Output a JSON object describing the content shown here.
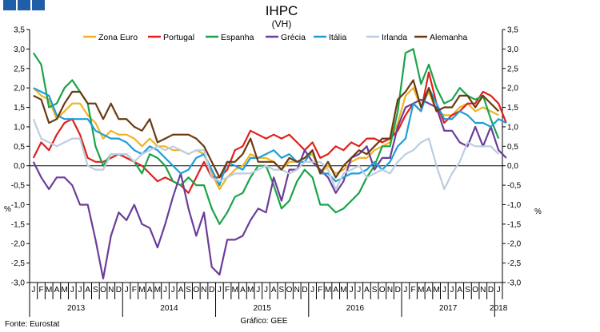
{
  "header": {
    "corner_colors": [
      "#1f5fa8",
      "#1f5fa8",
      "#1f5fa8"
    ]
  },
  "footer": {
    "source": "Fonte: Eurostat",
    "graphic": "Gráfico: GEE"
  },
  "chart_data": {
    "type": "line",
    "title": "IHPC",
    "subtitle": "(VH)",
    "ylabel_left": "%",
    "ylabel_right": "%",
    "ylim": [
      -3.0,
      3.5
    ],
    "yticks": [
      "3,5",
      "3,0",
      "2,5",
      "2,0",
      "1,5",
      "1,0",
      "0,5",
      "0,0",
      "-0,5",
      "-1,0",
      "-1,5",
      "-2,0",
      "-2,5",
      "-3,0"
    ],
    "month_labels": [
      "J",
      "F",
      "M",
      "A",
      "M",
      "J",
      "J",
      "A",
      "S",
      "O",
      "N",
      "D"
    ],
    "year_labels": [
      "2013",
      "2014",
      "2015",
      "2016",
      "2017",
      "2018"
    ],
    "x_start": "2013-01",
    "grid": false,
    "legend_position": "top",
    "series": [
      {
        "name": "Zona Euro",
        "color": "#f0b323",
        "values": [
          2.0,
          1.8,
          1.7,
          1.2,
          1.4,
          1.6,
          1.6,
          1.3,
          1.1,
          0.7,
          0.9,
          0.8,
          0.8,
          0.7,
          0.5,
          0.7,
          0.5,
          0.5,
          0.4,
          0.4,
          0.3,
          0.4,
          0.3,
          -0.2,
          -0.6,
          -0.3,
          -0.1,
          0.0,
          0.3,
          0.2,
          0.2,
          0.1,
          -0.1,
          0.1,
          0.1,
          0.2,
          0.3,
          -0.2,
          0.0,
          -0.2,
          -0.1,
          0.1,
          0.2,
          0.2,
          0.4,
          0.5,
          0.6,
          1.1,
          1.8,
          2.0,
          1.5,
          1.9,
          1.4,
          1.3,
          1.3,
          1.5,
          1.6,
          1.4,
          1.5,
          1.4,
          1.3
        ]
      },
      {
        "name": "Portugal",
        "color": "#e0201b",
        "values": [
          0.2,
          0.6,
          0.4,
          0.8,
          1.1,
          1.2,
          0.8,
          0.2,
          0.1,
          0.1,
          0.2,
          0.3,
          0.2,
          0.1,
          0.0,
          -0.2,
          -0.4,
          -0.3,
          -0.4,
          -0.5,
          -0.7,
          -0.3,
          0.1,
          -0.3,
          -0.3,
          -0.1,
          0.4,
          0.5,
          0.9,
          0.8,
          0.7,
          0.8,
          0.7,
          0.8,
          0.6,
          0.4,
          0.6,
          0.2,
          0.3,
          0.5,
          0.4,
          0.6,
          0.5,
          0.7,
          0.7,
          0.6,
          0.7,
          0.9,
          1.3,
          1.6,
          1.4,
          2.4,
          1.6,
          1.1,
          1.3,
          1.4,
          1.6,
          1.6,
          1.9,
          1.8,
          1.6,
          1.1
        ]
      },
      {
        "name": "Espanha",
        "color": "#1aa34a",
        "values": [
          2.9,
          2.6,
          1.5,
          1.6,
          2.0,
          2.2,
          1.9,
          1.6,
          0.5,
          0.0,
          0.3,
          0.3,
          0.3,
          0.1,
          -0.2,
          0.3,
          0.2,
          0.0,
          -0.4,
          -0.5,
          -0.3,
          -0.5,
          -0.5,
          -1.1,
          -1.5,
          -1.2,
          -0.8,
          -0.7,
          -0.3,
          0.0,
          0.0,
          -0.5,
          -1.1,
          -0.9,
          -0.4,
          -0.1,
          -0.3,
          -1.0,
          -1.0,
          -1.2,
          -1.1,
          -0.9,
          -0.7,
          -0.3,
          0.0,
          0.5,
          0.5,
          1.4,
          2.9,
          3.0,
          2.1,
          2.6,
          2.0,
          1.6,
          1.7,
          2.0,
          1.8,
          1.7,
          1.8,
          1.2,
          0.7
        ]
      },
      {
        "name": "Grécia",
        "color": "#6a3d9a",
        "values": [
          0.1,
          -0.3,
          -0.6,
          -0.3,
          -0.3,
          -0.5,
          -1.0,
          -1.0,
          -1.9,
          -2.9,
          -1.8,
          -1.2,
          -1.4,
          -1.0,
          -1.5,
          -1.6,
          -2.1,
          -1.5,
          -0.8,
          -0.2,
          -1.1,
          -1.8,
          -1.2,
          -2.6,
          -2.8,
          -1.9,
          -1.9,
          -1.8,
          -1.4,
          -1.1,
          -1.2,
          -0.3,
          -0.9,
          -0.1,
          -0.1,
          0.4,
          0.1,
          -0.1,
          -0.3,
          -0.7,
          -0.4,
          0.2,
          0.3,
          0.5,
          -0.1,
          0.2,
          0.2,
          1.0,
          1.5,
          1.6,
          1.7,
          1.6,
          1.5,
          0.9,
          0.9,
          0.6,
          0.5,
          1.0,
          0.5,
          1.0,
          0.4,
          0.2
        ]
      },
      {
        "name": "Itália",
        "color": "#1f9dd9",
        "values": [
          2.0,
          1.9,
          1.8,
          1.3,
          1.2,
          1.2,
          1.2,
          1.2,
          0.9,
          0.8,
          0.7,
          0.7,
          0.6,
          0.4,
          0.3,
          0.5,
          0.4,
          0.2,
          0.0,
          -0.2,
          -0.1,
          0.2,
          0.3,
          -0.1,
          -0.5,
          0.1,
          0.0,
          -0.1,
          0.2,
          0.2,
          0.3,
          0.4,
          0.2,
          0.3,
          0.1,
          0.1,
          0.4,
          -0.2,
          -0.2,
          -0.4,
          -0.3,
          -0.2,
          -0.2,
          -0.1,
          0.1,
          -0.1,
          0.1,
          0.5,
          0.7,
          1.6,
          1.4,
          2.0,
          1.6,
          1.2,
          1.2,
          1.4,
          1.3,
          1.1,
          1.1,
          1.0,
          1.2,
          1.1
        ]
      },
      {
        "name": "Irlanda",
        "color": "#bccddf",
        "values": [
          1.2,
          0.7,
          0.6,
          0.5,
          0.6,
          0.7,
          0.7,
          0.0,
          -0.1,
          -0.1,
          0.3,
          0.3,
          0.3,
          0.1,
          0.3,
          0.4,
          0.5,
          0.4,
          0.5,
          0.4,
          0.3,
          0.4,
          0.4,
          -0.3,
          -0.4,
          -0.3,
          -0.2,
          -0.2,
          -0.2,
          -0.1,
          0.0,
          -0.1,
          -0.1,
          -0.2,
          -0.1,
          0.1,
          0.1,
          0.1,
          -0.1,
          -0.6,
          -0.2,
          -0.1,
          0.0,
          -0.3,
          -0.2,
          -0.1,
          -0.2,
          0.1,
          0.3,
          0.4,
          0.6,
          0.7,
          0.0,
          -0.6,
          -0.2,
          0.1,
          0.6,
          0.5,
          0.5,
          0.5,
          0.3
        ]
      },
      {
        "name": "Alemanha",
        "color": "#6b3a11",
        "values": [
          1.8,
          1.7,
          1.1,
          1.2,
          1.6,
          1.9,
          1.9,
          1.6,
          1.6,
          1.2,
          1.6,
          1.2,
          1.2,
          1.0,
          0.9,
          1.2,
          0.6,
          0.7,
          0.8,
          0.8,
          0.8,
          0.7,
          0.5,
          0.1,
          -0.3,
          0.1,
          0.1,
          0.3,
          0.7,
          0.1,
          0.1,
          0.1,
          -0.1,
          0.2,
          0.1,
          0.2,
          0.4,
          -0.2,
          0.1,
          -0.3,
          0.0,
          0.2,
          0.4,
          0.3,
          0.5,
          0.7,
          0.7,
          1.7,
          1.9,
          2.2,
          1.5,
          2.0,
          1.4,
          1.5,
          1.5,
          1.8,
          1.8,
          1.5,
          1.8,
          1.6,
          1.4
        ]
      }
    ]
  }
}
